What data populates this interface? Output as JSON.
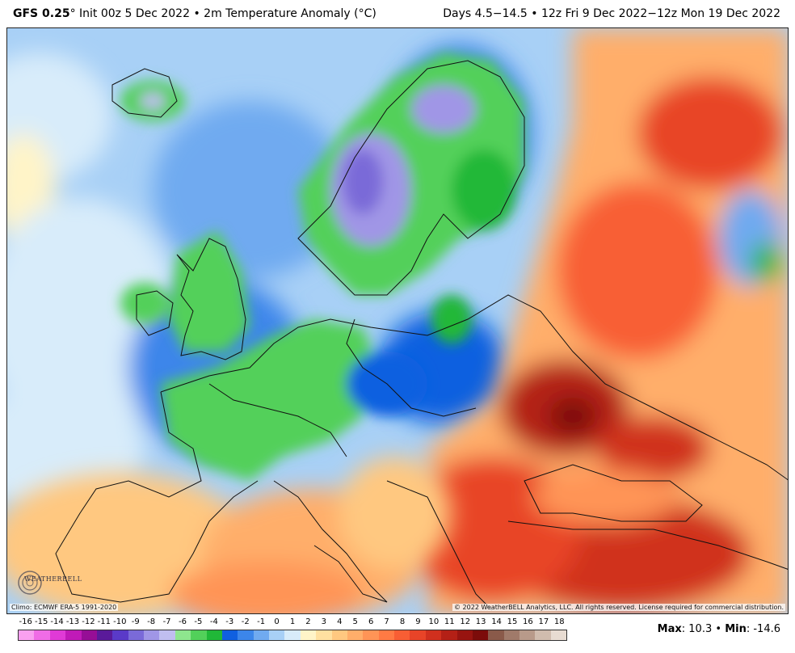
{
  "header": {
    "model": "GFS 0.25",
    "degree": "°",
    "init": "Init 00z 5 Dec 2022",
    "bullet": "•",
    "product": "2m Temperature Anomaly (°C)",
    "right_text": "Days 4.5−14.5 • 12z Fri 9 Dec 2022−12z Mon 19 Dec 2022"
  },
  "map": {
    "region": "Europe",
    "climo_note": "Climo: ECMWF ERA-5 1991-2020",
    "copyright": "© 2022 WeatherBELL Analytics, LLC. All rights reserved. License required for commercial distribution.",
    "logo_text": "WEATHERBELL"
  },
  "legend": {
    "labels": [
      "-16",
      "-15",
      "-14",
      "-13",
      "-12",
      "-11",
      "-10",
      "-9",
      "-8",
      "-7",
      "-6",
      "-5",
      "-4",
      "-3",
      "-2",
      "-1",
      "0",
      "1",
      "2",
      "3",
      "4",
      "5",
      "6",
      "7",
      "8",
      "9",
      "10",
      "11",
      "12",
      "13",
      "14",
      "15",
      "16",
      "17",
      "18"
    ],
    "colors": [
      "#f9a0f0",
      "#f06ce6",
      "#e03ad6",
      "#c01ab8",
      "#960e96",
      "#5a1a9a",
      "#5a3ac8",
      "#7a6ad8",
      "#a096e6",
      "#c0bef0",
      "#8ee68e",
      "#52d05a",
      "#20b838",
      "#1060e0",
      "#3c86ea",
      "#70aaf0",
      "#a8d0f6",
      "#d8ecfa",
      "#fff4c8",
      "#ffe0a0",
      "#ffc880",
      "#ffae6a",
      "#ff9456",
      "#ff7a44",
      "#f85e34",
      "#e84428",
      "#d0301e",
      "#b42016",
      "#981410",
      "#7c0c0a",
      "#8a5a4a",
      "#a07a6a",
      "#b89a8a",
      "#d0bcae",
      "#e8dcd2"
    ]
  },
  "stats": {
    "max_label": "Max",
    "max_value": "10.3",
    "bullet": "•",
    "min_label": "Min",
    "min_value": "-14.6"
  }
}
